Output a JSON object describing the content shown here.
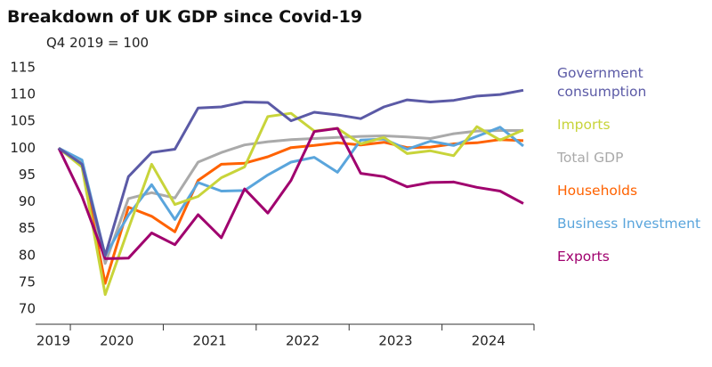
{
  "chart_data": {
    "type": "line",
    "title": "Breakdown of UK GDP since Covid-19",
    "subtitle": "Q4 2019 = 100",
    "year_labels": [
      "2019",
      "2020",
      "2021",
      "2022",
      "2023",
      "2024"
    ],
    "ylim": [
      70,
      115
    ],
    "yticks": [
      70,
      75,
      80,
      85,
      90,
      95,
      100,
      105,
      110,
      115
    ],
    "grid": false,
    "series": [
      {
        "name": "Government consumption",
        "color": "#5b5aa6",
        "values": [
          100,
          97,
          80,
          94.7,
          99.2,
          99.8,
          107.5,
          107.7,
          108.6,
          108.5,
          105.1,
          106.7,
          106.2,
          105.5,
          107.7,
          109,
          108.6,
          108.9,
          109.7,
          110,
          110.8
        ]
      },
      {
        "name": "Imports",
        "color": "#c8d43a",
        "values": [
          100,
          96.5,
          72.7,
          85,
          97,
          89.5,
          91,
          94.5,
          96.5,
          105.9,
          106.5,
          103.2,
          103.7,
          100.8,
          102,
          99,
          99.5,
          98.6,
          104,
          101.5,
          103.4
        ]
      },
      {
        "name": "Total GDP",
        "color": "#aaaaaa",
        "values": [
          100,
          97.5,
          78.5,
          90.6,
          91.7,
          90.7,
          97.4,
          99.2,
          100.6,
          101.2,
          101.6,
          101.8,
          102,
          102.2,
          102.3,
          102.1,
          101.8,
          102.7,
          103.2,
          103.3,
          103.3
        ]
      },
      {
        "name": "Households",
        "color": "#ff6200",
        "values": [
          100,
          97,
          74.8,
          89,
          87.3,
          84.4,
          94,
          97,
          97.2,
          98.4,
          100.1,
          100.5,
          101,
          100.6,
          101.1,
          100.1,
          100.2,
          100.8,
          101,
          101.6,
          101.4
        ]
      },
      {
        "name": "Business Investment",
        "color": "#5aa5dc",
        "values": [
          100,
          97.8,
          80,
          87.5,
          93.2,
          86.7,
          93.6,
          92,
          92.1,
          95,
          97.4,
          98.3,
          95.5,
          101.5,
          101.7,
          99.8,
          101.3,
          100.5,
          102.2,
          103.9,
          100.4
        ]
      },
      {
        "name": "Exports",
        "color": "#a0006e",
        "values": [
          100,
          91,
          79.4,
          79.5,
          84.2,
          82,
          87.6,
          83.3,
          92.4,
          87.9,
          94,
          103.1,
          103.7,
          95.3,
          94.7,
          92.8,
          93.6,
          93.7,
          92.7,
          92,
          89.7
        ]
      }
    ]
  }
}
